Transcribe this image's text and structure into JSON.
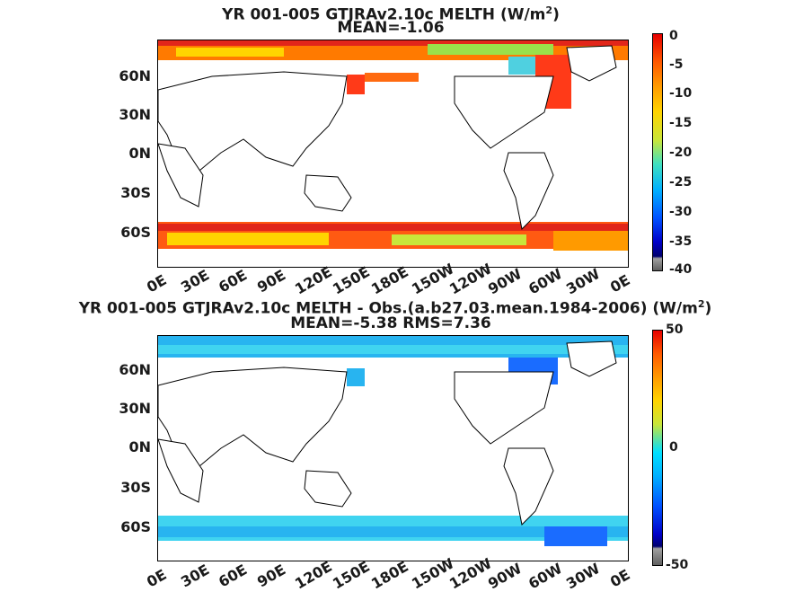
{
  "panels": [
    {
      "title_line1": "YR 001-005 GTJRAv2.10c  MELTH (W/m",
      "title_sup": "2",
      "title_close": ")",
      "title_line2": "MEAN=-1.06",
      "lat_labels": [
        "60N",
        "30N",
        "0N",
        "30S",
        "60S"
      ],
      "lon_labels": [
        "0E",
        "30E",
        "60E",
        "90E",
        "120E",
        "150E",
        "180E",
        "150W",
        "120W",
        "90W",
        "60W",
        "30W",
        "0E"
      ],
      "colorbar_ticks": [
        "0",
        "-5",
        "-10",
        "-15",
        "-20",
        "-25",
        "-30",
        "-35",
        "-40"
      ]
    },
    {
      "title_line1": "YR 001-005 GTJRAv2.10c MELTH - Obs.(a.b27.03.mean.1984-2006) (W/m",
      "title_sup": "2",
      "title_close": ")",
      "title_line2": "MEAN=-5.38 RMS=7.36",
      "lat_labels": [
        "60N",
        "30N",
        "0N",
        "30S",
        "60S"
      ],
      "lon_labels": [
        "0E",
        "30E",
        "60E",
        "90E",
        "120E",
        "150E",
        "180E",
        "150W",
        "120W",
        "90W",
        "60W",
        "30W",
        "0E"
      ],
      "colorbar_ticks": [
        "50",
        "0",
        "-50"
      ]
    }
  ]
}
